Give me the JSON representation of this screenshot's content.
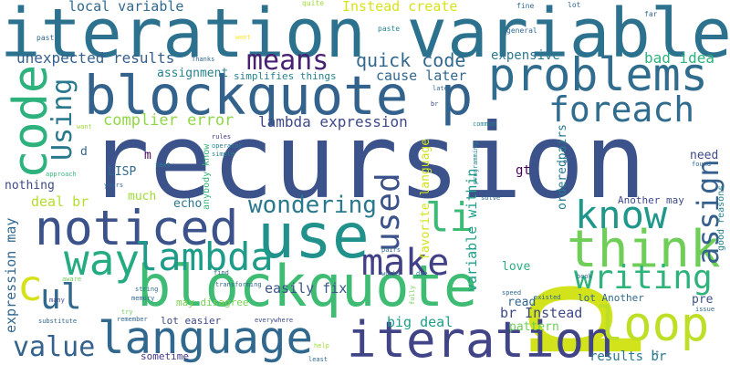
{
  "words": [
    {
      "text": "recursion",
      "color": "#3b528b"
    },
    {
      "text": "p",
      "color": "#d2e21b"
    },
    {
      "text": "iteration variable",
      "color": "#2c728e"
    },
    {
      "text": "blockquote p",
      "color": "#33628d"
    },
    {
      "text": "blockquote",
      "color": "#3fbc73"
    },
    {
      "text": "noticed",
      "color": "#3b528b"
    },
    {
      "text": "use",
      "color": "#21918c"
    },
    {
      "text": "think",
      "color": "#6ece58"
    },
    {
      "text": "language",
      "color": "#31688e"
    },
    {
      "text": "iteration",
      "color": "#414487"
    },
    {
      "text": "loop",
      "color": "#bddf26"
    },
    {
      "text": "problems",
      "color": "#2f6c8e"
    },
    {
      "text": "code",
      "color": "#2db27d"
    },
    {
      "text": "foreach",
      "color": "#2f6c8e"
    },
    {
      "text": "lambda",
      "color": "#1e9c89"
    },
    {
      "text": "way",
      "color": "#25ab82"
    },
    {
      "text": "make",
      "color": "#424086"
    },
    {
      "text": "li",
      "color": "#3bbb75"
    },
    {
      "text": "know",
      "color": "#1f988b"
    },
    {
      "text": "c",
      "color": "#d5e21a"
    },
    {
      "text": "ul",
      "color": "#31688e"
    },
    {
      "text": "value",
      "color": "#33628d"
    },
    {
      "text": "writing",
      "color": "#2eb37c"
    },
    {
      "text": "used",
      "color": "#3b528b"
    },
    {
      "text": "assign",
      "color": "#355f8d"
    },
    {
      "text": "Using",
      "color": "#2a788e"
    },
    {
      "text": "means",
      "color": "#482173"
    },
    {
      "text": "wondering",
      "color": "#2a788e"
    },
    {
      "text": "quick code",
      "color": "#31688e"
    },
    {
      "text": "local variable",
      "color": "#31688e"
    },
    {
      "text": "Instead create",
      "color": "#d8e219"
    },
    {
      "text": "unexpected results",
      "color": "#355f8d"
    },
    {
      "text": "complier error",
      "color": "#8fd744"
    },
    {
      "text": "lambda expression",
      "color": "#3e4989"
    },
    {
      "text": "cause later",
      "color": "#31688e"
    },
    {
      "text": "expensive",
      "color": "#2a788e"
    },
    {
      "text": "bad idea",
      "color": "#2db27d"
    },
    {
      "text": "assignment",
      "color": "#26828e"
    },
    {
      "text": "simplifies things",
      "color": "#26828e"
    },
    {
      "text": "easily fix",
      "color": "#3b528b"
    },
    {
      "text": "big deal",
      "color": "#1f9e89"
    },
    {
      "text": "br Instead",
      "color": "#3e4989"
    },
    {
      "text": "results br",
      "color": "#2a788e"
    },
    {
      "text": "expression may",
      "color": "#31688e"
    },
    {
      "text": "variable within",
      "color": "#1f9e89"
    },
    {
      "text": "orderedpairs",
      "color": "#2a788e"
    },
    {
      "text": "favorite language",
      "color": "#d2e21b"
    },
    {
      "text": "deal br",
      "color": "#b5de2b"
    },
    {
      "text": "nothing",
      "color": "#3e4989"
    },
    {
      "text": "LISP",
      "color": "#31688e"
    },
    {
      "text": "echo",
      "color": "#2a788e"
    },
    {
      "text": "much",
      "color": "#a0da39"
    },
    {
      "text": "gt",
      "color": "#440154"
    },
    {
      "text": "need",
      "color": "#3e4989"
    },
    {
      "text": "Another may",
      "color": "#3e4989"
    },
    {
      "text": "pre",
      "color": "#3b528b"
    },
    {
      "text": "love",
      "color": "#29af7f"
    },
    {
      "text": "pattern",
      "color": "#6ece58"
    },
    {
      "text": "read",
      "color": "#31688e"
    },
    {
      "text": "lot Another",
      "color": "#31688e"
    },
    {
      "text": "sometime",
      "color": "#443983"
    },
    {
      "text": "lot easier",
      "color": "#3e4989"
    },
    {
      "text": "may disagree",
      "color": "#7ad151"
    },
    {
      "text": "anybody know",
      "color": "#35b779"
    },
    {
      "text": "good reasons",
      "color": "#26828e"
    },
    {
      "text": "m",
      "color": "#440154"
    },
    {
      "text": "d",
      "color": "#31688e"
    },
    {
      "text": "quite",
      "color": "#a0da39"
    },
    {
      "text": "fine",
      "color": "#31688e"
    },
    {
      "text": "lot",
      "color": "#31688e"
    },
    {
      "text": "far",
      "color": "#31688e"
    },
    {
      "text": "past",
      "color": "#31688e"
    },
    {
      "text": "went",
      "color": "#fde725"
    },
    {
      "text": "paste",
      "color": "#26828e"
    },
    {
      "text": "general",
      "color": "#31688e"
    },
    {
      "text": "Thanks",
      "color": "#31688e"
    },
    {
      "text": "later",
      "color": "#31688e"
    },
    {
      "text": "br",
      "color": "#3e4989"
    },
    {
      "text": "want",
      "color": "#a0da39"
    },
    {
      "text": "common",
      "color": "#26828e"
    },
    {
      "text": "rules",
      "color": "#443983"
    },
    {
      "text": "operator",
      "color": "#26828e"
    },
    {
      "text": "simple",
      "color": "#26828e"
    },
    {
      "text": "approach",
      "color": "#35b779"
    },
    {
      "text": "text",
      "color": "#26828e"
    },
    {
      "text": "years",
      "color": "#31688e"
    },
    {
      "text": "ok",
      "color": "#31688e"
    },
    {
      "text": "found",
      "color": "#31688e"
    },
    {
      "text": "programming",
      "color": "#26828e"
    },
    {
      "text": "solve",
      "color": "#31688e"
    },
    {
      "text": "find",
      "color": "#31688e"
    },
    {
      "text": "works",
      "color": "#31688e"
    },
    {
      "text": "due",
      "color": "#31688e"
    },
    {
      "text": "transforming",
      "color": "#31688e"
    },
    {
      "text": "aware",
      "color": "#6ece58"
    },
    {
      "text": "many",
      "color": "#3e4989"
    },
    {
      "text": "string",
      "color": "#31688e"
    },
    {
      "text": "memory",
      "color": "#31688e"
    },
    {
      "text": "try",
      "color": "#6ece58"
    },
    {
      "text": "remember",
      "color": "#31688e"
    },
    {
      "text": "everywhere",
      "color": "#3e4989"
    },
    {
      "text": "substitute",
      "color": "#31688e"
    },
    {
      "text": "help",
      "color": "#a0da39"
    },
    {
      "text": "least",
      "color": "#31688e"
    },
    {
      "text": "pairs",
      "color": "#31688e"
    },
    {
      "text": "speed",
      "color": "#31688e"
    },
    {
      "text": "fully",
      "color": "#6ece58"
    },
    {
      "text": "book",
      "color": "#31688e"
    },
    {
      "text": "existed",
      "color": "#31688e"
    },
    {
      "text": "issue",
      "color": "#31688e"
    },
    {
      "text": "lt",
      "color": "#31688e"
    }
  ]
}
